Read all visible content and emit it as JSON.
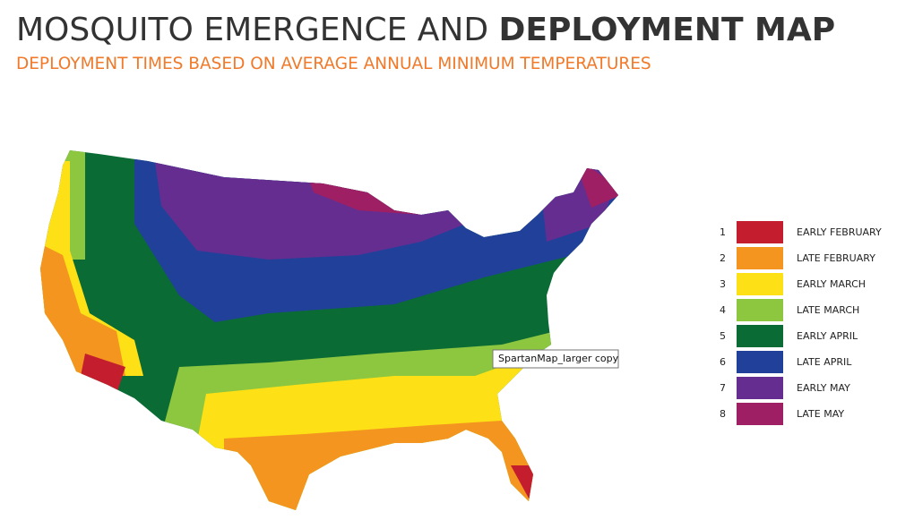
{
  "header": {
    "title_light": "MOSQUITO EMERGENCE AND",
    "title_bold": "DEPLOYMENT MAP",
    "subtitle": "DEPLOYMENT TIMES BASED ON AVERAGE ANNUAL MINIMUM TEMPERATURES"
  },
  "legend": {
    "items": [
      {
        "number": 1,
        "label": "EARLY FEBRUARY",
        "color": "#c41e2e"
      },
      {
        "number": 2,
        "label": "LATE FEBRUARY",
        "color": "#f3951f"
      },
      {
        "number": 3,
        "label": "EARLY MARCH",
        "color": "#fde015"
      },
      {
        "number": 4,
        "label": "LATE MARCH",
        "color": "#8dc63f"
      },
      {
        "number": 5,
        "label": "EARLY APRIL",
        "color": "#0a6b35"
      },
      {
        "number": 6,
        "label": "LATE APRIL",
        "color": "#21409a"
      },
      {
        "number": 7,
        "label": "EARLY MAY",
        "color": "#662d91"
      },
      {
        "number": 8,
        "label": "LATE MAY",
        "color": "#9e1f63"
      }
    ]
  },
  "tooltip": "SpartanMap_larger copy"
}
